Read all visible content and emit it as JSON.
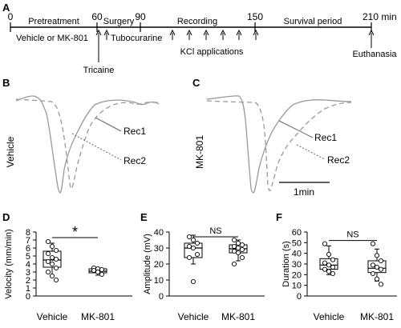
{
  "panels": {
    "a": "A",
    "b": "B",
    "c": "C",
    "d": "D",
    "e": "E",
    "f": "F"
  },
  "timeline": {
    "ticks": [
      "0",
      "60",
      "90",
      "150",
      "210 min"
    ],
    "phases": [
      "Pretreatment",
      "Surgery",
      "Recording",
      "Survival period"
    ],
    "notes": {
      "vehicle_mk": "Vehicle or MK-801",
      "tubocurarine": "Tubocurarine",
      "tricaine": "Tricaine",
      "kcl": "KCl applications",
      "euthanasia": "Euthanasia"
    }
  },
  "traces": {
    "b_label": "Vehicle",
    "c_label": "MK-801",
    "rec1": "Rec1",
    "rec2": "Rec2",
    "scale": "1min"
  },
  "chart_data": [
    {
      "type": "box",
      "panel": "D",
      "ylabel": "Velocity (mm/min)",
      "ylim": [
        0,
        8
      ],
      "yticks": [
        "0",
        "1",
        "2",
        "3",
        "4",
        "5",
        "6",
        "7",
        "8"
      ],
      "categories": [
        "Vehicle",
        "MK-801"
      ],
      "boxes": [
        {
          "q1": 3.6,
          "median": 4.5,
          "q3": 5.6,
          "whisker_low": 2.5,
          "whisker_high": 6.6
        },
        {
          "q1": 2.9,
          "median": 3.1,
          "q3": 3.4,
          "whisker_low": 2.6,
          "whisker_high": 3.5
        }
      ],
      "points": [
        [
          6.8,
          6.2,
          5.7,
          5.3,
          4.8,
          4.6,
          4.3,
          4.0,
          3.5,
          3.0,
          2.5,
          2.0
        ],
        [
          3.5,
          3.4,
          3.3,
          3.2,
          3.0,
          2.7
        ]
      ],
      "significance": {
        "text": "*",
        "y": 7.3
      }
    },
    {
      "type": "box",
      "panel": "E",
      "ylabel": "Amplitude (mV)",
      "ylim": [
        0,
        40
      ],
      "yticks": [
        "0",
        "10",
        "20",
        "30",
        "40"
      ],
      "categories": [
        "Vehicle",
        "MK-801"
      ],
      "boxes": [
        {
          "q1": 24,
          "median": 30,
          "q3": 33,
          "whisker_low": 20,
          "whisker_high": 38
        },
        {
          "q1": 27,
          "median": 29.5,
          "q3": 32,
          "whisker_low": 22,
          "whisker_high": 35
        }
      ],
      "points": [
        [
          37,
          35,
          33,
          31,
          30,
          26,
          24,
          9
        ],
        [
          35,
          33,
          32,
          31,
          30,
          29,
          28,
          27,
          24,
          20
        ]
      ],
      "significance": {
        "text": "NS",
        "y": 37
      }
    },
    {
      "type": "box",
      "panel": "F",
      "ylabel": "Duration (s)",
      "ylim": [
        0,
        60
      ],
      "yticks": [
        "0",
        "10",
        "20",
        "30",
        "40",
        "50",
        "60"
      ],
      "categories": [
        "Vehicle",
        "MK-801"
      ],
      "boxes": [
        {
          "q1": 25,
          "median": 29,
          "q3": 35,
          "whisker_low": 20,
          "whisker_high": 47
        },
        {
          "q1": 22,
          "median": 26,
          "q3": 33,
          "whisker_low": 14,
          "whisker_high": 44
        }
      ],
      "points": [
        [
          49,
          39,
          34,
          31,
          29,
          27,
          25,
          23,
          21
        ],
        [
          49,
          38,
          33,
          29,
          27,
          25,
          21,
          16,
          11
        ]
      ],
      "significance": {
        "text": "NS",
        "y": 52
      }
    }
  ]
}
